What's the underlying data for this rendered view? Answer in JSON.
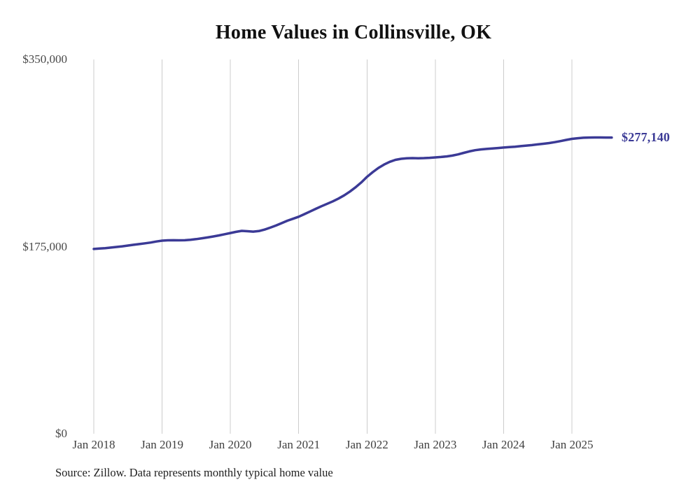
{
  "chart": {
    "title": "Home Values in Collinsville, OK",
    "y_ticks": [
      "$350,000",
      "$175,000",
      "$0"
    ],
    "x_ticks": [
      "Jan 2018",
      "Jan 2019",
      "Jan 2020",
      "Jan 2021",
      "Jan 2022",
      "Jan 2023",
      "Jan 2024",
      "Jan 2025"
    ],
    "latest_value_label": "$277,140",
    "source": "Source: Zillow. Data represents monthly typical home value"
  },
  "chart_data": {
    "type": "line",
    "title": "Home Values in Collinsville, OK",
    "xlabel": "",
    "ylabel": "",
    "ylim": [
      0,
      350000
    ],
    "y_tick_values": [
      350000,
      175000,
      0
    ],
    "x_tick_labels": [
      "Jan 2018",
      "Jan 2019",
      "Jan 2020",
      "Jan 2021",
      "Jan 2022",
      "Jan 2023",
      "Jan 2024",
      "Jan 2025"
    ],
    "grid": "vertical-only",
    "legend": "none",
    "line_color": "#3b3a96",
    "grid_color": "#cccccc",
    "annotation": {
      "text": "$277,140",
      "position": "end-of-line"
    },
    "source": "Source: Zillow. Data represents monthly typical home value",
    "x": [
      "2018-01",
      "2018-02",
      "2018-03",
      "2018-04",
      "2018-05",
      "2018-06",
      "2018-07",
      "2018-08",
      "2018-09",
      "2018-10",
      "2018-11",
      "2018-12",
      "2019-01",
      "2019-02",
      "2019-03",
      "2019-04",
      "2019-05",
      "2019-06",
      "2019-07",
      "2019-08",
      "2019-09",
      "2019-10",
      "2019-11",
      "2019-12",
      "2020-01",
      "2020-02",
      "2020-03",
      "2020-04",
      "2020-05",
      "2020-06",
      "2020-07",
      "2020-08",
      "2020-09",
      "2020-10",
      "2020-11",
      "2020-12",
      "2021-01",
      "2021-02",
      "2021-03",
      "2021-04",
      "2021-05",
      "2021-06",
      "2021-07",
      "2021-08",
      "2021-09",
      "2021-10",
      "2021-11",
      "2021-12",
      "2022-01",
      "2022-02",
      "2022-03",
      "2022-04",
      "2022-05",
      "2022-06",
      "2022-07",
      "2022-08",
      "2022-09",
      "2022-10",
      "2022-11",
      "2022-12",
      "2023-01",
      "2023-02",
      "2023-03",
      "2023-04",
      "2023-05",
      "2023-06",
      "2023-07",
      "2023-08",
      "2023-09",
      "2023-10",
      "2023-11",
      "2023-12",
      "2024-01",
      "2024-02",
      "2024-03",
      "2024-04",
      "2024-05",
      "2024-06",
      "2024-07",
      "2024-08",
      "2024-09",
      "2024-10",
      "2024-11",
      "2024-12",
      "2025-01",
      "2025-02",
      "2025-03",
      "2025-04",
      "2025-05",
      "2025-06",
      "2025-07",
      "2025-08"
    ],
    "values": [
      173100,
      173500,
      173900,
      174400,
      175000,
      175600,
      176300,
      177000,
      177700,
      178400,
      179100,
      180100,
      180900,
      181200,
      181300,
      181200,
      181300,
      181700,
      182300,
      183100,
      183900,
      184800,
      185800,
      186900,
      188000,
      189100,
      190000,
      189700,
      189300,
      189800,
      191200,
      193000,
      195000,
      197200,
      199500,
      201300,
      203200,
      205600,
      208100,
      210600,
      213000,
      215300,
      217600,
      220200,
      223200,
      226700,
      230700,
      235300,
      240400,
      244800,
      248700,
      251900,
      254500,
      256300,
      257300,
      257800,
      257900,
      257800,
      257900,
      258200,
      258600,
      259000,
      259500,
      260300,
      261400,
      262800,
      264200,
      265300,
      266000,
      266500,
      266900,
      267300,
      267800,
      268200,
      268600,
      269100,
      269600,
      270100,
      270700,
      271300,
      272000,
      272800,
      273800,
      274900,
      275900,
      276500,
      276900,
      277100,
      277200,
      277200,
      277100,
      277140
    ]
  }
}
